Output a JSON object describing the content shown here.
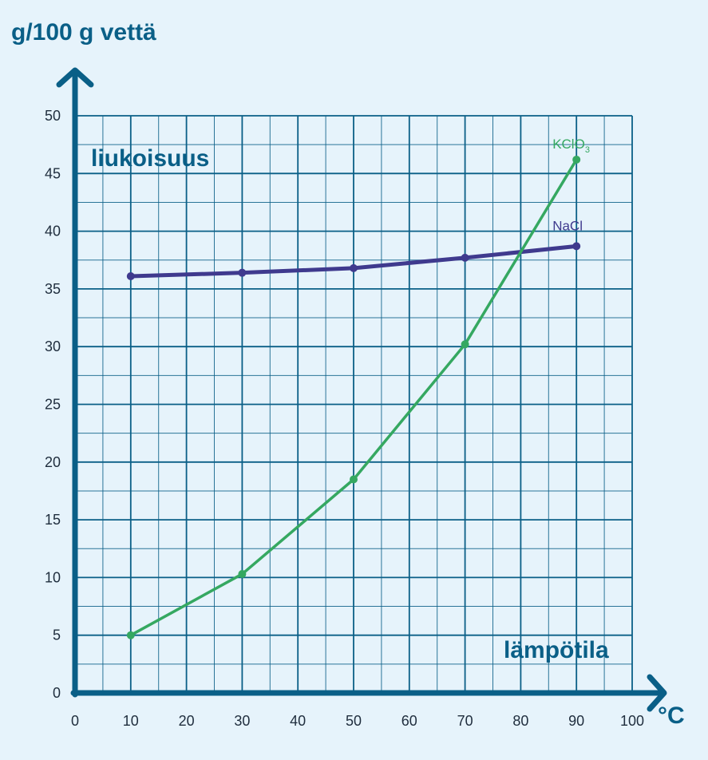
{
  "chart_data": {
    "type": "line",
    "ylabel": "g/100 g vettä",
    "xlabel": "lämpötila",
    "xunit": "°C",
    "annotation": "liukoisuus",
    "xlim": [
      0,
      100
    ],
    "ylim": [
      0,
      50
    ],
    "xticks": [
      0,
      10,
      20,
      30,
      40,
      50,
      60,
      70,
      80,
      90,
      100
    ],
    "yticks": [
      0,
      5,
      10,
      15,
      20,
      25,
      30,
      35,
      40,
      45,
      50
    ],
    "grid": true,
    "series": [
      {
        "name": "NaCl",
        "name_main": "NaCl",
        "name_sub": "",
        "color": "#3f3a8e",
        "x": [
          10,
          30,
          50,
          70,
          90
        ],
        "y": [
          36.1,
          36.4,
          36.8,
          37.7,
          38.7
        ]
      },
      {
        "name": "KClO3",
        "name_main": "KClO",
        "name_sub": "3",
        "color": "#35a861",
        "x": [
          10,
          30,
          50,
          70,
          90
        ],
        "y": [
          5.0,
          10.3,
          18.5,
          30.2,
          46.2
        ]
      }
    ]
  },
  "colors": {
    "background": "#e6f3fb",
    "axis": "#0a5f87",
    "grid": "#0a5f87"
  }
}
